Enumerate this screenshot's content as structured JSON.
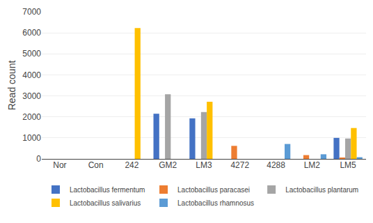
{
  "chart_data": {
    "type": "bar",
    "categories": [
      "Nor",
      "Con",
      "242",
      "GM2",
      "LM3",
      "4272",
      "4288",
      "LM2",
      "LM5"
    ],
    "series": [
      {
        "name": "Lactobacillus fermentum",
        "color": "#4472C4",
        "values": [
          0,
          0,
          0,
          2150,
          1930,
          0,
          0,
          0,
          1000
        ]
      },
      {
        "name": "Lactobacillus paracasei",
        "color": "#ED7D31",
        "values": [
          0,
          0,
          0,
          0,
          0,
          620,
          0,
          180,
          60
        ]
      },
      {
        "name": "Lactobacillus plantarum",
        "color": "#A5A5A5",
        "values": [
          0,
          0,
          0,
          3080,
          2230,
          0,
          0,
          0,
          970
        ]
      },
      {
        "name": "Lactobacillus salivarius",
        "color": "#FFC000",
        "values": [
          0,
          0,
          6230,
          0,
          2720,
          0,
          0,
          0,
          1470
        ]
      },
      {
        "name": "Lactobacillus rhamnosus",
        "color": "#5B9BD5",
        "values": [
          0,
          0,
          0,
          0,
          0,
          0,
          710,
          220,
          80
        ]
      }
    ],
    "ylabel": "Read count",
    "ylim": [
      0,
      7000
    ],
    "yticks": [
      0,
      1000,
      2000,
      3000,
      4000,
      5000,
      6000,
      7000
    ],
    "grid": true,
    "legend": "bottom"
  }
}
